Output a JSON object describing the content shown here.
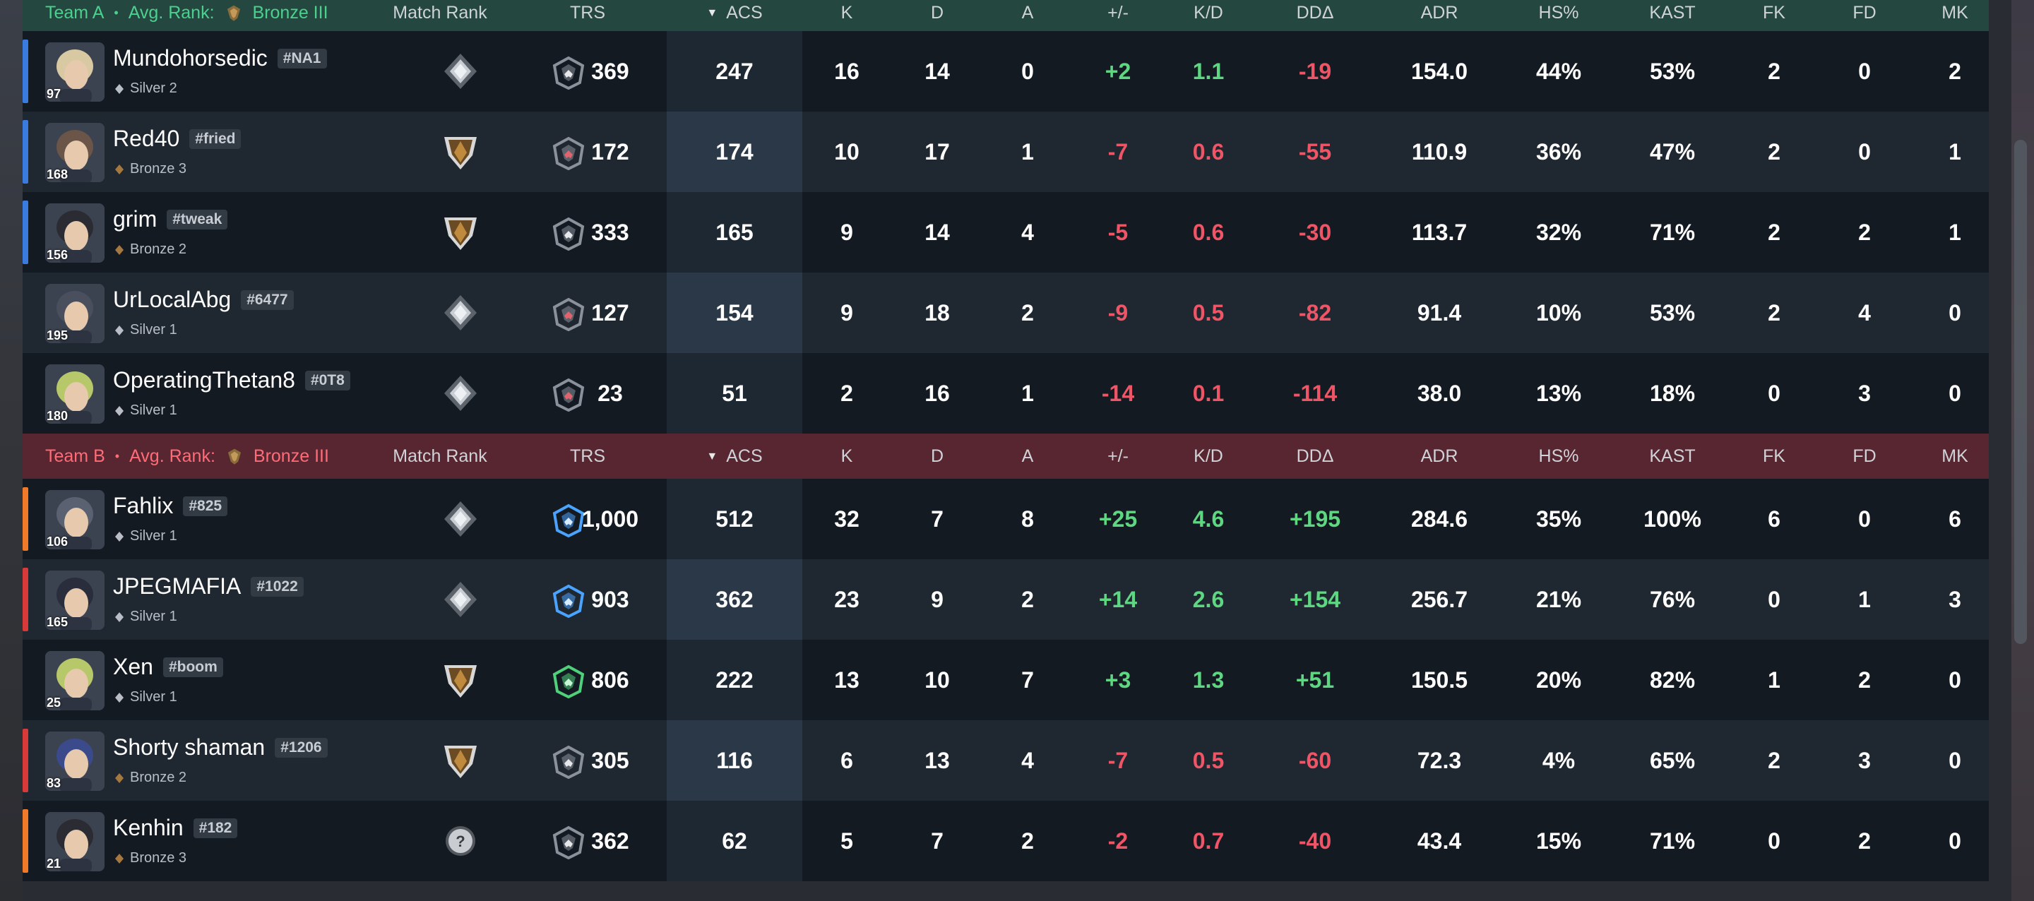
{
  "columns": {
    "match_rank": "Match Rank",
    "trs": "TRS",
    "acs": "ACS",
    "k": "K",
    "d": "D",
    "a": "A",
    "pm": "+/-",
    "kd": "K/D",
    "dd": "DDΔ",
    "adr": "ADR",
    "hs": "HS%",
    "kast": "KAST",
    "fk": "FK",
    "fd": "FD",
    "mk": "MK"
  },
  "colors": {
    "team_a_accent": "#4cd08f",
    "team_b_accent": "#ff6b77",
    "positive": "#5fd782",
    "negative": "#ee5566",
    "team_a_strip": "#3a7be0",
    "team_b_strip_orange": "#f07a2a",
    "team_b_strip_red": "#d83a3a"
  },
  "team_a": {
    "name": "Team A",
    "avg_rank_label": "Avg. Rank:",
    "avg_rank": "Bronze III",
    "players": [
      {
        "name": "Mundohorsedic",
        "tag": "#NA1",
        "rank": "Silver 2",
        "level": "97",
        "match_rank": "silver",
        "trs_icon": "gray",
        "trs": "369",
        "acs": "247",
        "k": "16",
        "d": "14",
        "a": "0",
        "pm": "+2",
        "kd": "1.1",
        "dd": "-19",
        "adr": "154.0",
        "hs": "44%",
        "kast": "53%",
        "fk": "2",
        "fd": "0",
        "mk": "2",
        "pm_sign": "pos",
        "kd_sign": "pos",
        "dd_sign": "neg",
        "strip": "blue",
        "avatar_color": "#d9c9a3"
      },
      {
        "name": "Red40",
        "tag": "#fried",
        "rank": "Bronze 3",
        "level": "168",
        "match_rank": "bronze",
        "trs_icon": "gray-red",
        "trs": "172",
        "acs": "174",
        "k": "10",
        "d": "17",
        "a": "1",
        "pm": "-7",
        "kd": "0.6",
        "dd": "-55",
        "adr": "110.9",
        "hs": "36%",
        "kast": "47%",
        "fk": "2",
        "fd": "0",
        "mk": "1",
        "pm_sign": "neg",
        "kd_sign": "neg",
        "dd_sign": "neg",
        "strip": "blue",
        "avatar_color": "#6a5548"
      },
      {
        "name": "grim",
        "tag": "#tweak",
        "rank": "Bronze 2",
        "level": "156",
        "match_rank": "bronze",
        "trs_icon": "gray",
        "trs": "333",
        "acs": "165",
        "k": "9",
        "d": "14",
        "a": "4",
        "pm": "-5",
        "kd": "0.6",
        "dd": "-30",
        "adr": "113.7",
        "hs": "32%",
        "kast": "71%",
        "fk": "2",
        "fd": "2",
        "mk": "1",
        "pm_sign": "neg",
        "kd_sign": "neg",
        "dd_sign": "neg",
        "strip": "blue",
        "avatar_color": "#2b2b33"
      },
      {
        "name": "UrLocalAbg",
        "tag": "#6477",
        "rank": "Silver 1",
        "level": "195",
        "match_rank": "silver",
        "trs_icon": "gray-red",
        "trs": "127",
        "acs": "154",
        "k": "9",
        "d": "18",
        "a": "2",
        "pm": "-9",
        "kd": "0.5",
        "dd": "-82",
        "adr": "91.4",
        "hs": "10%",
        "kast": "53%",
        "fk": "2",
        "fd": "4",
        "mk": "0",
        "pm_sign": "neg",
        "kd_sign": "neg",
        "dd_sign": "neg",
        "strip": "none",
        "avatar_color": "#4a4f5e"
      },
      {
        "name": "OperatingThetan8",
        "tag": "#0T8",
        "rank": "Silver 1",
        "level": "180",
        "match_rank": "silver",
        "trs_icon": "gray-red",
        "trs": "23",
        "acs": "51",
        "k": "2",
        "d": "16",
        "a": "1",
        "pm": "-14",
        "kd": "0.1",
        "dd": "-114",
        "adr": "38.0",
        "hs": "13%",
        "kast": "18%",
        "fk": "0",
        "fd": "3",
        "mk": "0",
        "pm_sign": "neg",
        "kd_sign": "neg",
        "dd_sign": "neg",
        "strip": "none",
        "avatar_color": "#b7c86a"
      }
    ]
  },
  "team_b": {
    "name": "Team B",
    "avg_rank_label": "Avg. Rank:",
    "avg_rank": "Bronze III",
    "players": [
      {
        "name": "Fahlix",
        "tag": "#825",
        "rank": "Silver 1",
        "level": "106",
        "match_rank": "silver",
        "trs_icon": "blue",
        "trs": "1,000",
        "acs": "512",
        "k": "32",
        "d": "7",
        "a": "8",
        "pm": "+25",
        "kd": "4.6",
        "dd": "+195",
        "adr": "284.6",
        "hs": "35%",
        "kast": "100%",
        "fk": "6",
        "fd": "0",
        "mk": "6",
        "pm_sign": "pos",
        "kd_sign": "pos",
        "dd_sign": "pos",
        "strip": "orange",
        "avatar_color": "#5a6272"
      },
      {
        "name": "JPEGMAFIA",
        "tag": "#1022",
        "rank": "Silver 1",
        "level": "165",
        "match_rank": "silver",
        "trs_icon": "blue",
        "trs": "903",
        "acs": "362",
        "k": "23",
        "d": "9",
        "a": "2",
        "pm": "+14",
        "kd": "2.6",
        "dd": "+154",
        "adr": "256.7",
        "hs": "21%",
        "kast": "76%",
        "fk": "0",
        "fd": "1",
        "mk": "3",
        "pm_sign": "pos",
        "kd_sign": "pos",
        "dd_sign": "pos",
        "strip": "red",
        "avatar_color": "#2a2e3c"
      },
      {
        "name": "Xen",
        "tag": "#boom",
        "rank": "Silver 1",
        "level": "25",
        "match_rank": "bronze",
        "trs_icon": "green",
        "trs": "806",
        "acs": "222",
        "k": "13",
        "d": "10",
        "a": "7",
        "pm": "+3",
        "kd": "1.3",
        "dd": "+51",
        "adr": "150.5",
        "hs": "20%",
        "kast": "82%",
        "fk": "1",
        "fd": "2",
        "mk": "0",
        "pm_sign": "pos",
        "kd_sign": "pos",
        "dd_sign": "pos",
        "strip": "none",
        "avatar_color": "#b7c86a"
      },
      {
        "name": "Shorty shaman",
        "tag": "#1206",
        "rank": "Bronze 2",
        "level": "83",
        "match_rank": "bronze",
        "trs_icon": "gray",
        "trs": "305",
        "acs": "116",
        "k": "6",
        "d": "13",
        "a": "4",
        "pm": "-7",
        "kd": "0.5",
        "dd": "-60",
        "adr": "72.3",
        "hs": "4%",
        "kast": "65%",
        "fk": "2",
        "fd": "3",
        "mk": "0",
        "pm_sign": "neg",
        "kd_sign": "neg",
        "dd_sign": "neg",
        "strip": "red",
        "avatar_color": "#3b4a8a"
      },
      {
        "name": "Kenhin",
        "tag": "#182",
        "rank": "Bronze 3",
        "level": "21",
        "match_rank": "unknown",
        "trs_icon": "gray",
        "trs": "362",
        "acs": "62",
        "k": "5",
        "d": "7",
        "a": "2",
        "pm": "-2",
        "kd": "0.7",
        "dd": "-40",
        "adr": "43.4",
        "hs": "15%",
        "kast": "71%",
        "fk": "0",
        "fd": "2",
        "mk": "0",
        "pm_sign": "neg",
        "kd_sign": "neg",
        "dd_sign": "neg",
        "strip": "orange",
        "avatar_color": "#2b2b33"
      }
    ]
  }
}
